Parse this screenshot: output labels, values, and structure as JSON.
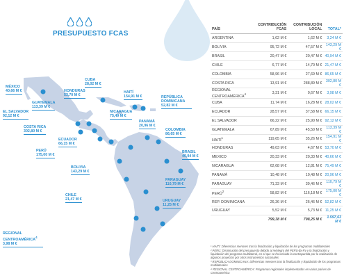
{
  "title": "PRESUPUESTO FCAS",
  "table": {
    "headers": {
      "country": "PAÍS",
      "fcas": "CONTRIBUCIÓN FCAS",
      "local": "CONTRIBUCIÓN LOCAL",
      "total": "TOTAL*"
    },
    "rows": [
      {
        "country": "ARGENTINA",
        "fcas": "1,62 M €",
        "local": "1,62 M €",
        "total": "3,24 M €"
      },
      {
        "country": "BOLIVIA",
        "fcas": "95,72 M €",
        "local": "47,57 M €",
        "total": "143,29 M €"
      },
      {
        "country": "BRASIL",
        "fcas": "20,47 M €",
        "local": "20,47 M €",
        "total": "40,94 M €"
      },
      {
        "country": "CHILE",
        "fcas": "6,77 M €",
        "local": "14,70 M €",
        "total": "21,47 M €"
      },
      {
        "country": "COLOMBIA",
        "fcas": "58,96 M €",
        "local": "27,69 M €",
        "total": "86,65 M €"
      },
      {
        "country": "COSTA RICA",
        "fcas": "13,91 M €",
        "local": "288,89 M €",
        "total": "302,80 M €"
      },
      {
        "country": "REGIONAL CENTROAMÉRICA",
        "sup": "4",
        "fcas": "3,31 M €",
        "local": "0,67 M €",
        "total": "3,98 M €"
      },
      {
        "country": "CUBA",
        "fcas": "11,74 M €",
        "local": "16,28 M €",
        "total": "28,02 M €"
      },
      {
        "country": "ECUADOR",
        "fcas": "28,57 M €",
        "local": "37,58 M €",
        "total": "66,15 M €"
      },
      {
        "country": "EL SALVADOR",
        "fcas": "66,22 M €",
        "local": "25,90 M €",
        "total": "92,12 M €"
      },
      {
        "country": "GUATEMALA",
        "fcas": "67,89 M €",
        "local": "45,50 M €",
        "total": "113,39 M €"
      },
      {
        "country": "HAITÍ",
        "sup": "1",
        "fcas": "119,65 M €",
        "local": "35,26 M €",
        "total": "154,91 M €"
      },
      {
        "country": "HONDURAS",
        "fcas": "49,03 M €",
        "local": "4,67 M €",
        "total": "53,70 M €"
      },
      {
        "country": "MEXICO",
        "fcas": "20,33 M €",
        "local": "20,33 M €",
        "total": "40,66 M €"
      },
      {
        "country": "NICARAGUA",
        "fcas": "62,68 M €",
        "local": "12,81 M €",
        "total": "75,49 M €"
      },
      {
        "country": "PANAMÁ",
        "fcas": "10,48 M €",
        "local": "10,48 M €",
        "total": "20,96 M €"
      },
      {
        "country": "PARAGUAY",
        "fcas": "71,33 M €",
        "local": "39,46 M €",
        "total": "110,79 M €"
      },
      {
        "country": "PERÚ",
        "sup": "2",
        "fcas": "58,82 M €",
        "local": "116,18 M €",
        "total": "175,00 M €"
      },
      {
        "country": "REP. DOMINICANA",
        "sup": "",
        "fcas": "26,36 M €",
        "local": "26,46 M €",
        "total": "52,82 M €"
      },
      {
        "country": "URUGUAY",
        "fcas": "5,52 M €",
        "local": "5,73 M €",
        "total": "11,25 M €"
      }
    ],
    "totals": {
      "fcas": "799,38 M €",
      "local": "798,25 M €",
      "total": "1.597,63 M €"
    }
  },
  "map_labels": [
    {
      "name": "MÉXICO",
      "value": "40,66 M €"
    },
    {
      "name": "CUBA",
      "value": "28,02 M €"
    },
    {
      "name": "HONDURAS",
      "value": "53,70 M €"
    },
    {
      "name": "HAITÍ",
      "value": "154,91 M €"
    },
    {
      "name": "REPÚBLICA DOMINICANA",
      "value": "52,82 M €"
    },
    {
      "name": "GUATEMALA",
      "value": "113,39 M €"
    },
    {
      "name": "EL SALVADOR",
      "value": "92,12 M €"
    },
    {
      "name": "NICARAGUA",
      "value": "75,49 M €"
    },
    {
      "name": "PANAMÁ",
      "value": "20,96 M €"
    },
    {
      "name": "COSTA RICA",
      "value": "302,80 M €"
    },
    {
      "name": "COLOMBIA",
      "value": "86,65 M €"
    },
    {
      "name": "ECUADOR",
      "value": "66,15 M €"
    },
    {
      "name": "PERÚ",
      "value": "175,00 M €"
    },
    {
      "name": "BRASIL",
      "value": "40,94 M €"
    },
    {
      "name": "BOLIVIA",
      "value": "143,29 M €"
    },
    {
      "name": "PARAGUAY",
      "value": "110,79 M €"
    },
    {
      "name": "CHILE",
      "value": "21,47 M €"
    },
    {
      "name": "URUGUAY",
      "value": "11,25 M €"
    },
    {
      "name": "REGIONAL CENTROAMÉRICA",
      "sup": "4",
      "value": "3,98 M €"
    }
  ],
  "notes": [
    "¹ HAITÍ: Diferencias menores tras la finalización y liquidación de los programas multilaterales",
    "² PERÚ: Disminución del presupuesto debido al reintegro del PERU-jbi-Rv y la finalización y liquidación del programa multilateral, en el que se ha incluido la contrapartida por la realización de algunos proyectos por otros instrumentos nacionales",
    "³ REPÚBLICA DOMINICANA: Diferencias menores tras la finalización y liquidación de los programas multilaterales",
    "⁴ REGIONAL CENTROAMÉRICA: Programas regionales implementados en varios países de Centroamérica"
  ],
  "chart_data": {
    "type": "table",
    "title": "PRESUPUESTO FCAS",
    "unit": "M €",
    "columns": [
      "PAÍS",
      "CONTRIBUCIÓN FCAS",
      "CONTRIBUCIÓN LOCAL",
      "TOTAL*"
    ],
    "categories": [
      "ARGENTINA",
      "BOLIVIA",
      "BRASIL",
      "CHILE",
      "COLOMBIA",
      "COSTA RICA",
      "REGIONAL CENTROAMÉRICA",
      "CUBA",
      "ECUADOR",
      "EL SALVADOR",
      "GUATEMALA",
      "HAITÍ",
      "HONDURAS",
      "MEXICO",
      "NICARAGUA",
      "PANAMÁ",
      "PARAGUAY",
      "PERÚ",
      "REP. DOMINICANA",
      "URUGUAY"
    ],
    "series": [
      {
        "name": "CONTRIBUCIÓN FCAS",
        "values": [
          1.62,
          95.72,
          20.47,
          6.77,
          58.96,
          13.91,
          3.31,
          11.74,
          28.57,
          66.22,
          67.89,
          119.65,
          49.03,
          20.33,
          62.68,
          10.48,
          71.33,
          58.82,
          26.36,
          5.52
        ]
      },
      {
        "name": "CONTRIBUCIÓN LOCAL",
        "values": [
          1.62,
          47.57,
          20.47,
          14.7,
          27.69,
          288.89,
          0.67,
          16.28,
          37.58,
          25.9,
          45.5,
          35.26,
          4.67,
          20.33,
          12.81,
          10.48,
          39.46,
          116.18,
          26.46,
          5.73
        ]
      },
      {
        "name": "TOTAL*",
        "values": [
          3.24,
          143.29,
          40.94,
          21.47,
          86.65,
          302.8,
          3.98,
          28.02,
          66.15,
          92.12,
          113.39,
          154.91,
          53.7,
          40.66,
          75.49,
          20.96,
          110.79,
          175.0,
          52.82,
          11.25
        ]
      }
    ],
    "totals": {
      "CONTRIBUCIÓN FCAS": 799.38,
      "CONTRIBUCIÓN LOCAL": 798.25,
      "TOTAL*": 1597.63
    }
  }
}
